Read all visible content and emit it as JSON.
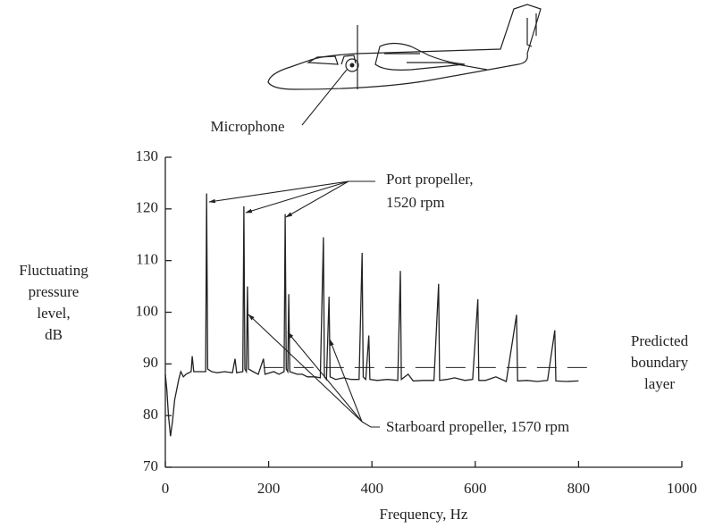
{
  "chart_data": {
    "type": "line",
    "xlabel": "Frequency, Hz",
    "ylabel": [
      "Fluctuating",
      "pressure",
      "level,",
      "dB"
    ],
    "xlim": [
      0,
      1000
    ],
    "xticks": [
      0,
      200,
      400,
      600,
      800,
      1000
    ],
    "ylim": [
      70,
      130
    ],
    "yticks": [
      70,
      80,
      90,
      100,
      110,
      120,
      130
    ],
    "series": [
      {
        "color": "#222222",
        "x": [
          0,
          3,
          6,
          10,
          14,
          18,
          22,
          26,
          30,
          35,
          40,
          50,
          52,
          55,
          70,
          78,
          80,
          82,
          90,
          100,
          115,
          130,
          135,
          138,
          150,
          152,
          154,
          157,
          159,
          161,
          170,
          180,
          190,
          193,
          210,
          220,
          230,
          232,
          234,
          237,
          239,
          241,
          255,
          265,
          275,
          290,
          300,
          306,
          308,
          312,
          317,
          319,
          330,
          345,
          360,
          375,
          381,
          383,
          388,
          394,
          396,
          410,
          430,
          450,
          455,
          457,
          470,
          480,
          500,
          520,
          529,
          531,
          545,
          560,
          580,
          595,
          605,
          607,
          620,
          640,
          660,
          680,
          682,
          700,
          720,
          740,
          754,
          756,
          775,
          800
        ],
        "values": [
          88,
          85,
          80,
          76,
          79,
          83,
          85,
          87,
          88.5,
          87.5,
          88,
          88.5,
          91.5,
          88.5,
          88.5,
          88.5,
          123,
          89,
          88.5,
          88.3,
          88.5,
          88.3,
          91,
          88.3,
          88.5,
          120.5,
          89,
          88.5,
          105,
          89,
          88.5,
          88,
          91,
          88,
          88.5,
          88,
          88.5,
          119,
          89,
          88.5,
          103.5,
          88.5,
          88,
          88,
          87.5,
          87.5,
          87.3,
          114.5,
          87.5,
          87,
          103,
          87.5,
          87,
          87.3,
          87,
          87,
          111.5,
          87.5,
          87,
          95.5,
          87,
          86.8,
          87,
          86.8,
          108,
          87,
          88,
          86.7,
          86.8,
          86.8,
          105.5,
          86.8,
          87,
          87.3,
          86.8,
          87,
          102.5,
          86.8,
          86.8,
          87.5,
          86.6,
          99.5,
          86.7,
          86.8,
          86.6,
          86.8,
          96.5,
          86.7,
          86.6,
          86.7
        ]
      }
    ],
    "reference_line": {
      "x": [
        190,
        822
      ],
      "value": 89.3,
      "label": [
        "Predicted",
        "boundary",
        "layer"
      ]
    },
    "annotations": {
      "port": [
        "Port propeller,",
        "1520 rpm"
      ],
      "starboard": [
        "Starboard propeller, 1570 rpm"
      ],
      "microphone": [
        "Microphone"
      ]
    }
  }
}
